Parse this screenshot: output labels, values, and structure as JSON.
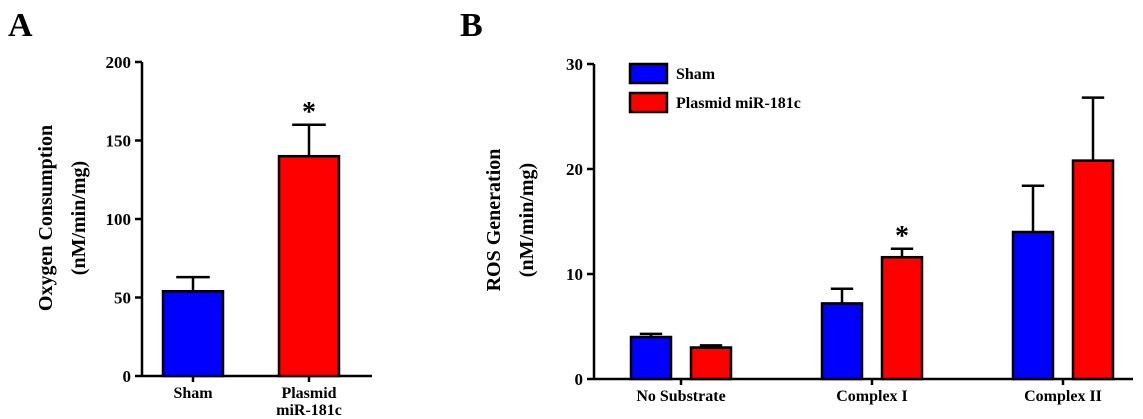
{
  "chart_data": [
    {
      "type": "bar",
      "panel": "A",
      "title": "",
      "ylabel": "Oxygen Consumption",
      "ylabel_units": "(nM/min/mg)",
      "xlabel": "",
      "ylim": [
        0,
        200
      ],
      "yticks": [
        0,
        50,
        100,
        150,
        200
      ],
      "categories": [
        {
          "line1": "Sham",
          "line2": ""
        },
        {
          "line1": "Plasmid",
          "line2": "miR-181c"
        }
      ],
      "values": [
        54,
        140
      ],
      "errors": [
        9,
        20
      ],
      "colors": [
        "#0000ff",
        "#ff0000"
      ],
      "significance": [
        "",
        "*"
      ],
      "grid": false
    },
    {
      "type": "bar",
      "panel": "B",
      "title": "",
      "ylabel": "ROS Generation",
      "ylabel_units": "(nM/min/mg)",
      "xlabel": "",
      "ylim": [
        0,
        30
      ],
      "yticks": [
        0,
        10,
        20,
        30
      ],
      "categories": [
        "No Substrate",
        "Complex I",
        "Complex II"
      ],
      "series": [
        {
          "name": "Sham",
          "color": "#0000ff",
          "values": [
            4.0,
            7.2,
            14.0
          ],
          "errors": [
            0.3,
            1.4,
            4.4
          ],
          "significance": [
            "",
            "",
            ""
          ]
        },
        {
          "name": "Plasmid miR-181c",
          "color": "#ff0000",
          "values": [
            3.0,
            11.6,
            20.8
          ],
          "errors": [
            0.2,
            0.8,
            6.0
          ],
          "significance": [
            "",
            "*",
            ""
          ]
        }
      ],
      "legend_position": "top-left",
      "grid": false
    }
  ]
}
